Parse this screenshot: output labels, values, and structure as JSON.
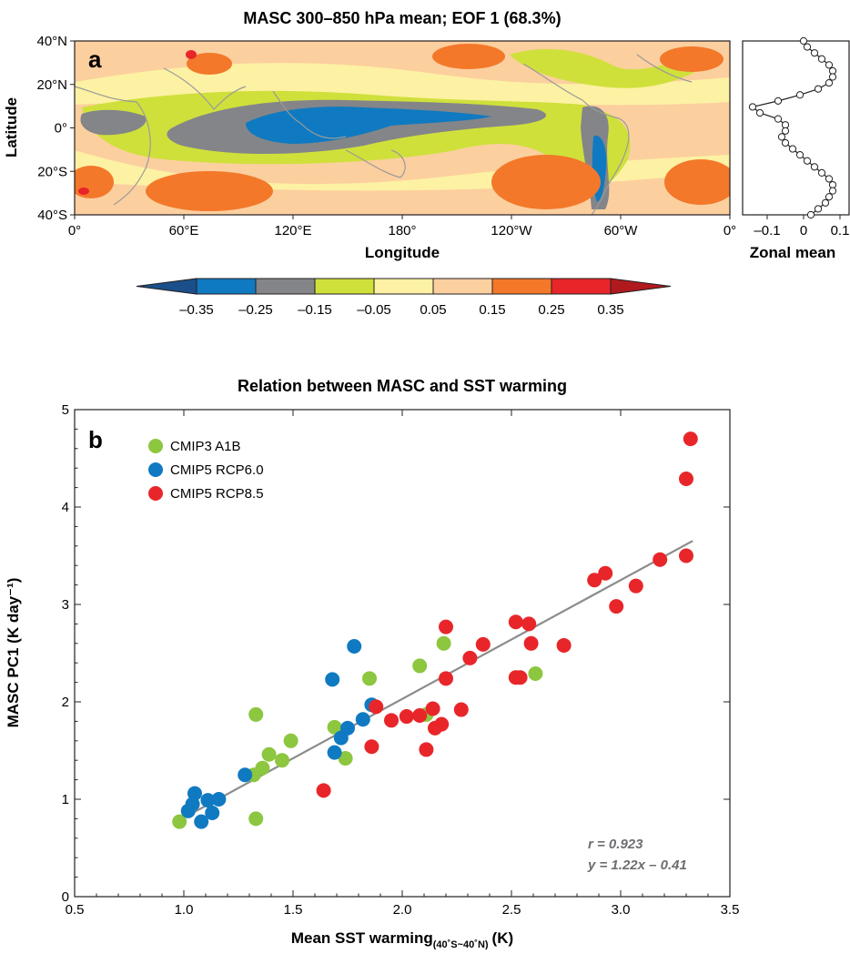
{
  "panel_a": {
    "title": "MASC 300–850 hPa mean; EOF 1 (68.3%)",
    "letter": "a",
    "xlabel": "Longitude",
    "ylabel": "Latitude",
    "x_ticks": [
      "0°",
      "60°E",
      "120°E",
      "180°",
      "120°W",
      "60°W",
      "0°"
    ],
    "y_ticks": [
      "40°N",
      "20°N",
      "0°",
      "20°S",
      "40°S"
    ],
    "zonal_label": "Zonal mean",
    "zonal_ticks": [
      "–0.1",
      "0",
      "0.1"
    ],
    "colorbar": {
      "ticks": [
        "–0.35",
        "–0.25",
        "–0.15",
        "–0.05",
        "0.05",
        "0.15",
        "0.25",
        "0.35"
      ],
      "colors": [
        "#1b4f8a",
        "#0f7ac1",
        "#848589",
        "#cfe03b",
        "#fdf1a3",
        "#fccf9f",
        "#f3782a",
        "#e8262a",
        "#b01a1f"
      ]
    }
  },
  "chart_data": {
    "type": "scatter",
    "title": "Relation between MASC and SST warming",
    "letter": "b",
    "xlabel": "Mean SST warming",
    "xlabel_sub": "(40˚S~40˚N)",
    "xlabel_unit": "(K)",
    "ylabel": "MASC PC1 (K day⁻¹)",
    "xlim": [
      0.5,
      3.5
    ],
    "ylim": [
      0,
      5
    ],
    "x_ticks": [
      "0.5",
      "1.0",
      "1.5",
      "2.0",
      "2.5",
      "3.0",
      "3.5"
    ],
    "y_ticks": [
      "0",
      "1",
      "2",
      "3",
      "4",
      "5"
    ],
    "series": [
      {
        "name": "CMIP3 A1B",
        "color": "#8dc63f",
        "x": [
          0.98,
          1.32,
          1.33,
          1.36,
          1.39,
          1.45,
          1.49,
          1.69,
          1.74,
          1.85,
          2.08,
          2.11,
          2.19,
          2.61,
          1.33
        ],
        "y": [
          0.77,
          1.25,
          1.87,
          1.32,
          1.46,
          1.4,
          1.6,
          1.74,
          1.42,
          2.24,
          2.37,
          1.87,
          2.6,
          2.29,
          0.8
        ]
      },
      {
        "name": "CMIP5 RCP6.0",
        "color": "#0f7ac1",
        "x": [
          1.02,
          1.04,
          1.08,
          1.11,
          1.13,
          1.16,
          1.28,
          1.68,
          1.69,
          1.72,
          1.75,
          1.78,
          1.82,
          1.86,
          1.05
        ],
        "y": [
          0.88,
          0.95,
          0.77,
          0.99,
          0.86,
          1.0,
          1.25,
          2.23,
          1.48,
          1.63,
          1.73,
          2.57,
          1.82,
          1.97,
          1.06
        ]
      },
      {
        "name": "CMIP5 RCP8.5",
        "color": "#e8262a",
        "x": [
          1.64,
          1.86,
          1.88,
          1.95,
          2.02,
          2.08,
          2.11,
          2.14,
          2.15,
          2.18,
          2.2,
          2.2,
          2.27,
          2.31,
          2.37,
          2.52,
          2.52,
          2.54,
          2.58,
          2.59,
          2.74,
          2.88,
          2.93,
          2.98,
          3.07,
          3.18,
          3.3,
          3.3,
          3.32
        ],
        "y": [
          1.09,
          1.54,
          1.95,
          1.81,
          1.85,
          1.86,
          1.51,
          1.93,
          1.73,
          1.77,
          2.24,
          2.77,
          1.92,
          2.45,
          2.59,
          2.82,
          2.25,
          2.25,
          2.8,
          2.6,
          2.58,
          3.25,
          3.32,
          2.98,
          3.19,
          3.46,
          3.5,
          4.29,
          4.7
        ]
      }
    ],
    "fit": {
      "slope": 1.22,
      "intercept": -0.41,
      "x_range": [
        0.98,
        3.33
      ],
      "color": "#8c8c8c"
    },
    "stats": {
      "r_label": "r = 0.923",
      "eq_label": "y = 1.22x – 0.41"
    },
    "legend_position": "top-left",
    "grid": false
  }
}
